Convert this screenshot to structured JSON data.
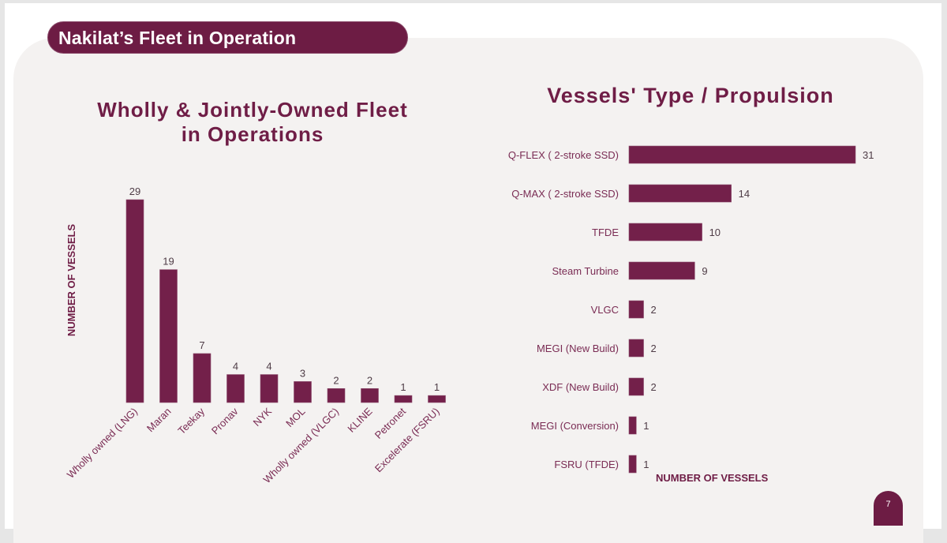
{
  "slide": {
    "header_title": "Nakilat’s Fleet in Operation",
    "page_number": "7",
    "colors": {
      "brand": "#6d1c44",
      "bar": "#73204a",
      "panel": "#f4f2f1"
    }
  },
  "chart_data": [
    {
      "type": "bar",
      "title": "Wholly & Jointly-Owned Fleet in Operations",
      "title_lines": [
        "Wholly & Jointly-Owned Fleet",
        "in Operations"
      ],
      "xlabel": "",
      "ylabel": "NUMBER OF VESSELS",
      "categories": [
        "Wholly owned (LNG)",
        "Maran",
        "Teekay",
        "Pronav",
        "NYK",
        "MOL",
        "Wholly owned (VLGC)",
        "KLINE",
        "Petronet",
        "Excelerate (FSRU)"
      ],
      "values": [
        29,
        19,
        7,
        4,
        4,
        3,
        2,
        2,
        1,
        1
      ],
      "ylim": [
        0,
        29
      ],
      "grid": false,
      "data_labels": true
    },
    {
      "type": "bar",
      "orientation": "horizontal",
      "title": "Vessels' Type / Propulsion",
      "xlabel": "NUMBER OF VESSELS",
      "ylabel": "",
      "categories": [
        "Q-FLEX  ( 2-stroke SSD)",
        "Q-MAX ( 2-stroke SSD)",
        "TFDE",
        "Steam Turbine",
        "VLGC",
        "MEGI (New Build)",
        "XDF (New Build)",
        "MEGI (Conversion)",
        "FSRU (TFDE)"
      ],
      "values": [
        31,
        14,
        10,
        9,
        2,
        2,
        2,
        1,
        1
      ],
      "xlim": [
        0,
        31
      ],
      "grid": false,
      "data_labels": true
    }
  ]
}
